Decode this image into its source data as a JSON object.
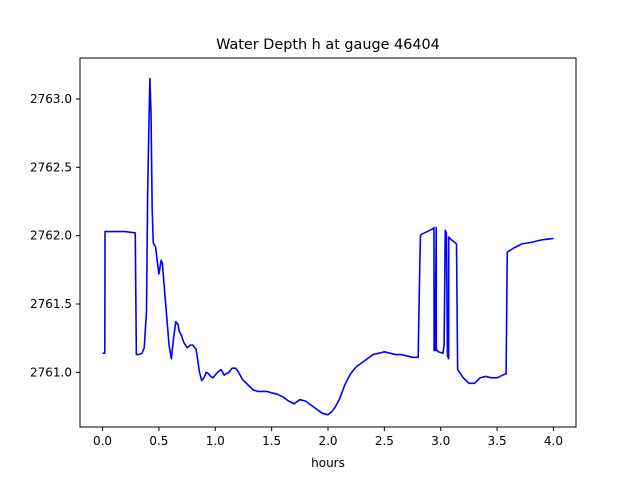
{
  "chart_data": {
    "type": "line",
    "title": "Water Depth h at gauge 46404",
    "xlabel": "hours",
    "ylabel": "",
    "xlim": [
      -0.2,
      4.2
    ],
    "ylim": [
      2760.6,
      2763.3
    ],
    "grid": false,
    "xticks": [
      0.0,
      0.5,
      1.0,
      1.5,
      2.0,
      2.5,
      3.0,
      3.5,
      4.0
    ],
    "xtick_labels": [
      "0.0",
      "0.5",
      "1.0",
      "1.5",
      "2.0",
      "2.5",
      "3.0",
      "3.5",
      "4.0"
    ],
    "yticks": [
      2761.0,
      2761.5,
      2762.0,
      2762.5,
      2763.0
    ],
    "ytick_labels": [
      "2761.0",
      "2761.5",
      "2762.0",
      "2762.5",
      "2763.0"
    ],
    "series": [
      {
        "color": "#0000ff",
        "x": [
          0.0,
          0.02,
          0.022,
          0.1,
          0.2,
          0.29,
          0.3,
          0.32,
          0.35,
          0.37,
          0.39,
          0.4,
          0.41,
          0.42,
          0.43,
          0.44,
          0.45,
          0.46,
          0.47,
          0.48,
          0.5,
          0.51,
          0.52,
          0.53,
          0.55,
          0.57,
          0.59,
          0.61,
          0.63,
          0.65,
          0.67,
          0.68,
          0.7,
          0.72,
          0.75,
          0.78,
          0.8,
          0.83,
          0.86,
          0.88,
          0.9,
          0.92,
          0.94,
          0.96,
          0.98,
          1.0,
          1.02,
          1.05,
          1.08,
          1.12,
          1.15,
          1.18,
          1.2,
          1.24,
          1.3,
          1.34,
          1.38,
          1.42,
          1.46,
          1.5,
          1.55,
          1.6,
          1.65,
          1.7,
          1.75,
          1.8,
          1.85,
          1.9,
          1.95,
          2.0,
          2.03,
          2.06,
          2.1,
          2.15,
          2.2,
          2.25,
          2.3,
          2.4,
          2.5,
          2.55,
          2.6,
          2.65,
          2.7,
          2.75,
          2.8,
          2.81,
          2.82,
          2.83,
          2.93,
          2.94,
          2.941,
          2.95,
          2.96,
          2.961,
          2.97,
          2.98,
          3.02,
          3.03,
          3.04,
          3.05,
          3.06,
          3.07,
          3.071,
          3.08,
          3.14,
          3.15,
          3.2,
          3.25,
          3.3,
          3.35,
          3.4,
          3.45,
          3.5,
          3.55,
          3.58,
          3.59,
          3.65,
          3.72,
          3.8,
          3.9,
          4.0
        ],
        "y": [
          2761.14,
          2761.14,
          2762.03,
          2762.03,
          2762.03,
          2762.02,
          2761.13,
          2761.13,
          2761.14,
          2761.18,
          2761.45,
          2762.3,
          2762.75,
          2763.15,
          2762.9,
          2762.2,
          2761.95,
          2761.93,
          2761.92,
          2761.85,
          2761.72,
          2761.77,
          2761.82,
          2761.8,
          2761.6,
          2761.4,
          2761.2,
          2761.1,
          2761.25,
          2761.37,
          2761.35,
          2761.3,
          2761.27,
          2761.22,
          2761.18,
          2761.2,
          2761.2,
          2761.17,
          2761.0,
          2760.94,
          2760.96,
          2761.0,
          2760.99,
          2760.97,
          2760.96,
          2760.98,
          2761.0,
          2761.02,
          2760.98,
          2761.0,
          2761.03,
          2761.03,
          2761.01,
          2760.95,
          2760.9,
          2760.87,
          2760.86,
          2760.86,
          2760.86,
          2760.85,
          2760.84,
          2760.82,
          2760.79,
          2760.77,
          2760.8,
          2760.79,
          2760.76,
          2760.73,
          2760.7,
          2760.69,
          2760.71,
          2760.74,
          2760.8,
          2760.91,
          2760.99,
          2761.04,
          2761.07,
          2761.13,
          2761.15,
          2761.14,
          2761.13,
          2761.13,
          2761.12,
          2761.11,
          2761.11,
          2761.6,
          2762.0,
          2762.01,
          2762.05,
          2762.06,
          2761.16,
          2761.16,
          2762.06,
          2761.16,
          2761.16,
          2761.15,
          2761.14,
          2761.2,
          2762.04,
          2762.02,
          2761.12,
          2761.1,
          2761.99,
          2761.98,
          2761.94,
          2761.02,
          2760.96,
          2760.92,
          2760.92,
          2760.96,
          2760.97,
          2760.96,
          2760.96,
          2760.98,
          2760.99,
          2761.88,
          2761.91,
          2761.94,
          2761.95,
          2761.97,
          2761.98
        ]
      }
    ]
  }
}
